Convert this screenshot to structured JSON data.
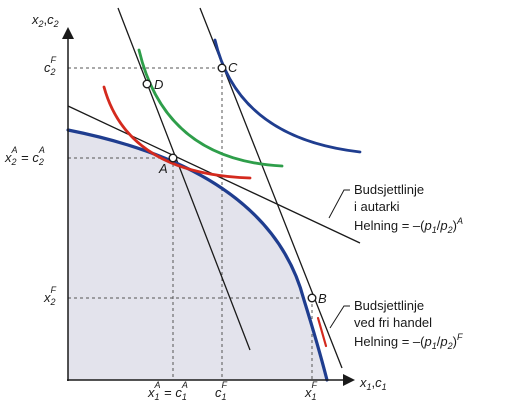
{
  "axes": {
    "y_label": [
      "x",
      "2",
      ",",
      "c",
      "2"
    ],
    "x_label": [
      "x",
      "1",
      ",",
      "c",
      "1"
    ]
  },
  "ticks": {
    "c2F": [
      "c",
      "2",
      "F"
    ],
    "x2A_c2A": [
      "x",
      "2",
      "A",
      " = ",
      "c",
      "2",
      "A"
    ],
    "x2F": [
      "x",
      "2",
      "F"
    ],
    "x1A_c1A": [
      "x",
      "1",
      "A",
      " = ",
      "c",
      "1",
      "A"
    ],
    "c1F": [
      "c",
      "1",
      "F"
    ],
    "x1F": [
      "x",
      "1",
      "F"
    ]
  },
  "points": {
    "A": "A",
    "B": "B",
    "C": "C",
    "D": "D"
  },
  "annotations": {
    "autarky": {
      "line1": "Budsjettlinje",
      "line2": "i autarki",
      "slope": [
        "Helning = –(",
        "p",
        "1",
        "/",
        "p",
        "2",
        ")",
        "A"
      ]
    },
    "free_trade": {
      "line1": "Budsjettlinje",
      "line2": "ved fri handel",
      "slope": [
        "Helning = –(",
        "p",
        "1",
        "/",
        "p",
        "2",
        ")",
        "F"
      ]
    }
  },
  "colors": {
    "ppf": "#1f3d8f",
    "indifference_high": "#1f3d8f",
    "indifference_mid": "#2e9e4a",
    "indifference_low": "#d42a1e",
    "production_set_fill": "#e3e3ec",
    "lines": "#1a1a1a"
  }
}
